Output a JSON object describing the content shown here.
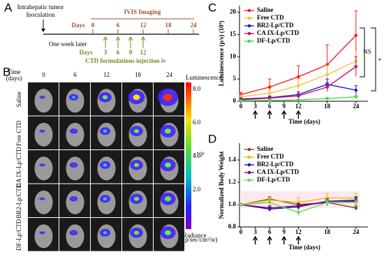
{
  "panel_labels": [
    "A",
    "B",
    "C",
    "D"
  ],
  "timeline": {
    "inoculation": [
      "Intrahepatic tumor",
      "Inoculation"
    ],
    "imaging_days_label": "Days",
    "imaging_days": [
      0,
      6,
      12,
      18,
      24
    ],
    "imaging_title": "IVIS Imaging",
    "delay": "One week later",
    "injection_days_label": "Days",
    "injection_days": [
      3,
      6,
      9,
      12
    ],
    "injection_title": "CTD formulations injection iv"
  },
  "imaging": {
    "time_label": [
      "Time",
      "(days)"
    ],
    "days": [
      0,
      6,
      12,
      18,
      24
    ],
    "groups": [
      "Saline",
      "Free CTD",
      "CA IX-Lp/CTD",
      "BR2-Lp/CTD",
      "DF-Lp/CTD"
    ],
    "colorbar_title": "Luminescence",
    "colorbar_ticks": [
      "8.0",
      "6.0",
      "4.0",
      "2.0"
    ],
    "colorbar_unit": "×10⁶",
    "colorbar_footer": [
      "Radiance",
      "(p/sec/cm²/sr)"
    ]
  },
  "chart_data": [
    {
      "type": "line",
      "x_label": "Time (days)",
      "y_label": "Luminescence (p/s) (10⁹)",
      "x": [
        0,
        6,
        12,
        18,
        24
      ],
      "xlim": [
        0,
        26.5
      ],
      "xticks": [
        0,
        3,
        6,
        9,
        12,
        18,
        24
      ],
      "ylim": [
        0,
        21.5
      ],
      "yticks": [
        0,
        5,
        10,
        15,
        20
      ],
      "injection_days": [
        3,
        6,
        9,
        12
      ],
      "series": [
        {
          "name": "Saline",
          "color": "#ff2020",
          "values": [
            1.5,
            3.2,
            5.5,
            8.2,
            14.8
          ],
          "errors": [
            0.5,
            1.8,
            2.5,
            4.5,
            5.5
          ]
        },
        {
          "name": "Free CTD",
          "color": "#f5c242",
          "values": [
            1.0,
            1.8,
            3.5,
            6.0,
            9.0
          ],
          "errors": [
            0.4,
            0.8,
            1.5,
            2.0,
            2.5
          ]
        },
        {
          "name": "BR2-Lp/CTD",
          "color": "#2020cc",
          "values": [
            0.5,
            0.8,
            1.5,
            3.8,
            2.5
          ],
          "errors": [
            0.2,
            0.4,
            0.6,
            1.2,
            1.0
          ]
        },
        {
          "name": "CA IX-Lp/CTD",
          "color": "#cc1166",
          "values": [
            0.3,
            0.7,
            1.2,
            3.2,
            7.8
          ],
          "errors": [
            0.2,
            0.3,
            0.5,
            1.0,
            2.2
          ]
        },
        {
          "name": "DF-Lp/CTD",
          "color": "#44dd44",
          "values": [
            0.1,
            0.2,
            0.3,
            0.6,
            1.0
          ],
          "errors": [
            0.05,
            0.1,
            0.1,
            0.2,
            0.3
          ]
        }
      ],
      "annotations": [
        "NS",
        "*"
      ]
    },
    {
      "type": "line",
      "x_label": "Time (days)",
      "y_label": "Normalized Body Weight",
      "x": [
        0,
        6,
        12,
        18,
        24
      ],
      "xlim": [
        0,
        26.5
      ],
      "xticks": [
        0,
        3,
        6,
        9,
        12,
        18,
        24
      ],
      "ylim": [
        0.8,
        1.55
      ],
      "yticks": [
        0.8,
        {
          "value": 1.0,
          "label": "1.0"
        },
        1.2,
        1.4
      ],
      "injection_days": [
        3,
        6,
        9,
        12
      ],
      "series": [
        {
          "name": "Saline",
          "color": "#8b4513",
          "values": [
            1.0,
            1.05,
            1.0,
            1.02,
            0.97
          ],
          "errors": [
            0.01,
            0.02,
            0.02,
            0.03,
            0.02
          ]
        },
        {
          "name": "Free CTD",
          "color": "#e8c000",
          "values": [
            1.0,
            1.04,
            1.02,
            1.06,
            1.06
          ],
          "errors": [
            0.01,
            0.02,
            0.04,
            0.04,
            0.04
          ]
        },
        {
          "name": "BR2-Lp/CTD",
          "color": "#1a1aa0",
          "values": [
            1.0,
            0.96,
            0.98,
            1.03,
            1.04
          ],
          "errors": [
            0.01,
            0.02,
            0.03,
            0.02,
            0.03
          ]
        },
        {
          "name": "CA IX-Lp/CTD",
          "color": "#800080",
          "values": [
            1.0,
            0.97,
            0.99,
            1.02,
            1.03
          ],
          "errors": [
            0.01,
            0.02,
            0.02,
            0.02,
            0.03
          ]
        },
        {
          "name": "DF-Lp/CTD",
          "color": "#66dd55",
          "values": [
            1.0,
            1.02,
            0.93,
            1.02,
            1.02
          ],
          "errors": [
            0.01,
            0.02,
            0.03,
            0.02,
            0.02
          ]
        }
      ]
    }
  ]
}
